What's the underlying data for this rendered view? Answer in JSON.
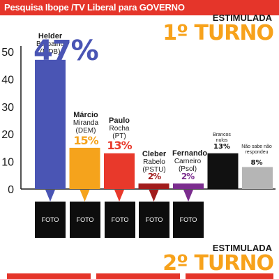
{
  "header": {
    "title": "Pesquisa Ibope /TV Liberal para GOVERNO"
  },
  "first_round": {
    "label": "ESTIMULADA",
    "title": "1º TURNO"
  },
  "second_round": {
    "label": "ESTIMULADA",
    "title": "2º TURNO"
  },
  "photo_placeholder": "FOTO",
  "colors": {
    "header": "#e5352a",
    "accent": "#f7a21b",
    "helder": "#4a55b4",
    "marcio": "#f5a31c",
    "paulo": "#e8392b",
    "cleber": "#a11c1c",
    "fernando": "#7b2d8e",
    "brancos": "#111111",
    "nao_sabe": "#b5b5b5"
  },
  "candidates": [
    {
      "name": "Helder",
      "line2": "Barbalho",
      "line3": "(MDB)",
      "pct": "47%"
    },
    {
      "name": "Márcio",
      "line2": "Miranda",
      "line3": "(DEM)",
      "pct": "15%"
    },
    {
      "name": "Paulo",
      "line2": "Rocha",
      "line3": "(PT)",
      "pct": "13%"
    },
    {
      "name": "Cleber",
      "line2": "Rabelo",
      "line3": "(PSTU)",
      "pct": "2%"
    },
    {
      "name": "Fernando",
      "line2": "Carneiro",
      "line3": "(Psol)",
      "pct": "2%"
    }
  ],
  "others": [
    {
      "label": "Brancos nulos",
      "pct": "13%"
    },
    {
      "label": "Não sabe não respondeu",
      "pct": "8%"
    }
  ],
  "chart_data": {
    "type": "bar",
    "categories": [
      "Helder Barbalho (MDB)",
      "Márcio Miranda (DEM)",
      "Paulo Rocha (PT)",
      "Cleber Rabelo (PSTU)",
      "Fernando Carneiro (Psol)",
      "Brancos nulos",
      "Não sabe não respondeu"
    ],
    "values": [
      47,
      15,
      13,
      2,
      2,
      13,
      8
    ],
    "ylim": [
      0,
      50
    ],
    "yticks": [
      0,
      10,
      20,
      30,
      40,
      50
    ],
    "grid": false
  }
}
